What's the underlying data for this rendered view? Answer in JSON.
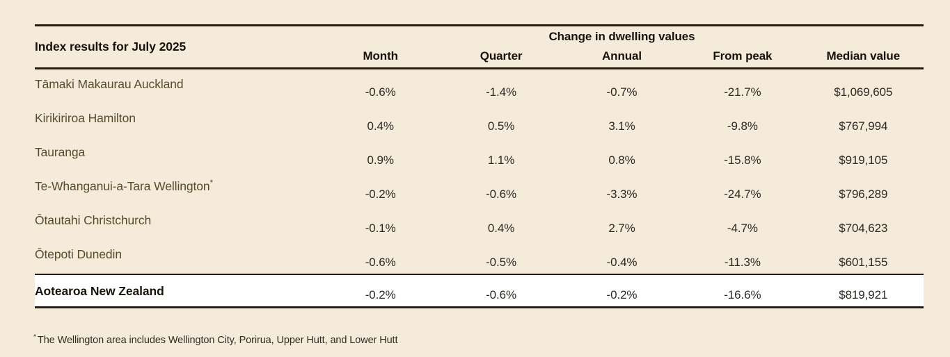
{
  "colors": {
    "background": "#f4ebdb",
    "rule": "#261d10",
    "heading_text": "#17130c",
    "row_label_text": "#564b2a",
    "value_text": "#2d2a24",
    "total_row_background": "#ffffff"
  },
  "chart_data": {
    "type": "table",
    "title": "Index results for July 2025",
    "group_header": "Change in dwelling values",
    "columns": [
      "Month",
      "Quarter",
      "Annual",
      "From peak",
      "Median value"
    ],
    "rows": [
      {
        "name": "Tāmaki Makaurau Auckland",
        "sup": "",
        "month": "-0.6%",
        "quarter": "-1.4%",
        "annual": "-0.7%",
        "from_peak": "-21.7%",
        "median_value": "$1,069,605"
      },
      {
        "name": "Kirikiriroa Hamilton",
        "sup": "",
        "month": "0.4%",
        "quarter": "0.5%",
        "annual": "3.1%",
        "from_peak": "-9.8%",
        "median_value": "$767,994"
      },
      {
        "name": "Tauranga",
        "sup": "",
        "month": "0.9%",
        "quarter": "1.1%",
        "annual": "0.8%",
        "from_peak": "-15.8%",
        "median_value": "$919,105"
      },
      {
        "name": "Te-Whanganui-a-Tara Wellington",
        "sup": "*",
        "month": "-0.2%",
        "quarter": "-0.6%",
        "annual": "-3.3%",
        "from_peak": "-24.7%",
        "median_value": "$796,289"
      },
      {
        "name": "Ōtautahi Christchurch",
        "sup": "",
        "month": "-0.1%",
        "quarter": "0.4%",
        "annual": "2.7%",
        "from_peak": "-4.7%",
        "median_value": "$704,623"
      },
      {
        "name": "Ōtepoti Dunedin",
        "sup": "",
        "month": "-0.6%",
        "quarter": "-0.5%",
        "annual": "-0.4%",
        "from_peak": "-11.3%",
        "median_value": "$601,155"
      }
    ],
    "total_row": {
      "name": "Aotearoa New Zealand",
      "month": "-0.2%",
      "quarter": "-0.6%",
      "annual": "-0.2%",
      "from_peak": "-16.6%",
      "median_value": "$819,921"
    }
  },
  "footnote": {
    "marker": "*",
    "text": "The Wellington area includes Wellington City, Porirua, Upper Hutt, and Lower Hutt"
  }
}
